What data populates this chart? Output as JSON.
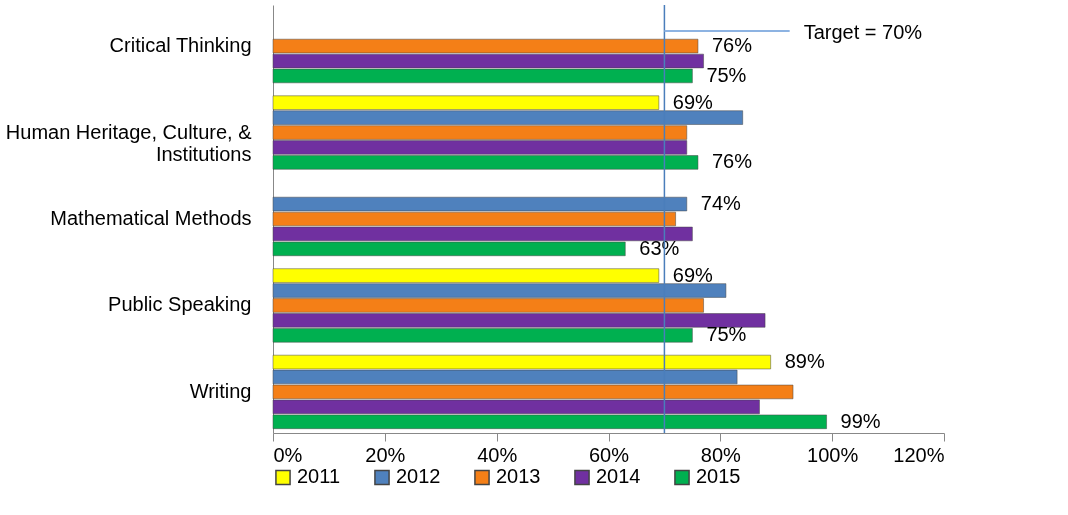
{
  "chart_data": {
    "type": "bar",
    "orientation": "horizontal",
    "categories": [
      "Critical Thinking",
      "Human Heritage, Culture, & Institutions",
      "Mathematical Methods",
      "Public Speaking",
      "Writing"
    ],
    "series": [
      {
        "name": "2011",
        "color": "#ffff00",
        "values": [
          null,
          69,
          null,
          69,
          89
        ],
        "value_labels": [
          null,
          "69%",
          null,
          "69%",
          "89%"
        ]
      },
      {
        "name": "2012",
        "color": "#4f81bd",
        "values": [
          null,
          84,
          74,
          81,
          83
        ],
        "value_labels": [
          null,
          null,
          "74%",
          null,
          null
        ]
      },
      {
        "name": "2013",
        "color": "#f47f17",
        "values": [
          76,
          74,
          72,
          77,
          93
        ],
        "value_labels": [
          "76%",
          null,
          null,
          null,
          null
        ]
      },
      {
        "name": "2014",
        "color": "#7030a0",
        "values": [
          77,
          74,
          75,
          88,
          87
        ]
      },
      {
        "name": "2015",
        "color": "#00b050",
        "values": [
          75,
          76,
          63,
          75,
          99
        ],
        "value_labels": [
          "75%",
          "76%",
          "63%",
          "75%",
          "99%"
        ]
      }
    ],
    "xlim": [
      0,
      120
    ],
    "xticks": [
      {
        "value": 0,
        "label": "0%"
      },
      {
        "value": 20,
        "label": "20%"
      },
      {
        "value": 40,
        "label": "40%"
      },
      {
        "value": 60,
        "label": "60%"
      },
      {
        "value": 80,
        "label": "80%"
      },
      {
        "value": 100,
        "label": "100%"
      },
      {
        "value": 120,
        "label": "120%"
      }
    ],
    "ref_lines": [
      {
        "axis": "x",
        "value": 70,
        "label": "Target = 70%",
        "color": "#4a7ebb"
      }
    ],
    "legend": "bottom"
  }
}
